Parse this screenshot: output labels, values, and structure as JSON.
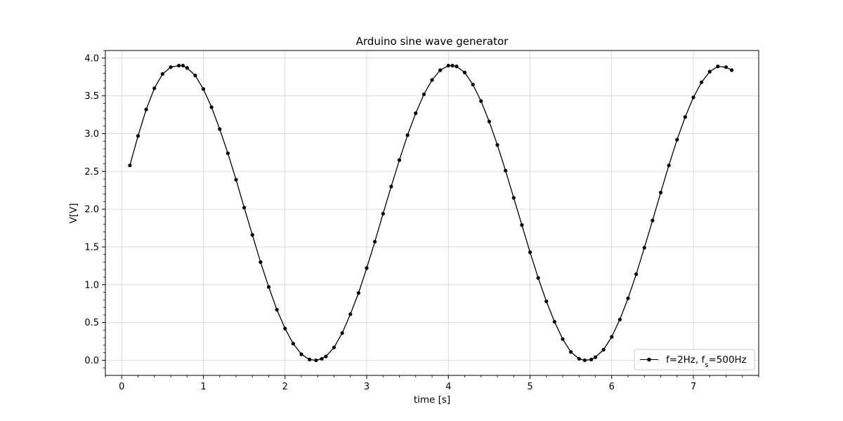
{
  "chart_data": {
    "type": "line",
    "title": "Arduino sine wave generator",
    "xlabel": "time [s]",
    "ylabel": "V[V]",
    "xlim": [
      -0.2,
      7.8
    ],
    "ylim": [
      -0.2,
      4.1
    ],
    "xticks": [
      0,
      1,
      2,
      3,
      4,
      5,
      6,
      7
    ],
    "xtick_labels": [
      "0",
      "1",
      "2",
      "3",
      "4",
      "5",
      "6",
      "7"
    ],
    "yticks": [
      0.0,
      0.5,
      1.0,
      1.5,
      2.0,
      2.5,
      3.0,
      3.5,
      4.0
    ],
    "ytick_labels": [
      "0.0",
      "0.5",
      "1.0",
      "1.5",
      "2.0",
      "2.5",
      "3.0",
      "3.5",
      "4.0"
    ],
    "grid": true,
    "minor_ticks": true,
    "legend_position": "lower-right",
    "series": [
      {
        "name": "f=2Hz, f_s=500Hz",
        "legend_label": {
          "prefix": "f=2Hz, f",
          "subscript": "s",
          "suffix": "=500Hz"
        },
        "color": "#000000",
        "marker": "circle",
        "linestyle": "solid",
        "x": [
          0.1,
          0.2,
          0.3,
          0.4,
          0.5,
          0.6,
          0.7,
          0.75,
          0.8,
          0.9,
          1.0,
          1.1,
          1.2,
          1.3,
          1.4,
          1.5,
          1.6,
          1.7,
          1.8,
          1.9,
          2.0,
          2.1,
          2.2,
          2.3,
          2.38,
          2.45,
          2.5,
          2.6,
          2.7,
          2.8,
          2.9,
          3.0,
          3.1,
          3.2,
          3.3,
          3.4,
          3.5,
          3.6,
          3.7,
          3.8,
          3.9,
          4.0,
          4.05,
          4.1,
          4.2,
          4.3,
          4.4,
          4.5,
          4.6,
          4.7,
          4.8,
          4.9,
          5.0,
          5.1,
          5.2,
          5.3,
          5.4,
          5.5,
          5.6,
          5.67,
          5.75,
          5.8,
          5.9,
          6.0,
          6.1,
          6.2,
          6.3,
          6.4,
          6.5,
          6.6,
          6.7,
          6.8,
          6.9,
          7.0,
          7.1,
          7.2,
          7.3,
          7.4,
          7.47
        ],
        "y": [
          2.58,
          2.97,
          3.32,
          3.6,
          3.79,
          3.88,
          3.9,
          3.9,
          3.87,
          3.77,
          3.59,
          3.35,
          3.06,
          2.74,
          2.39,
          2.02,
          1.66,
          1.3,
          0.97,
          0.67,
          0.42,
          0.22,
          0.08,
          0.01,
          0.0,
          0.02,
          0.05,
          0.17,
          0.36,
          0.61,
          0.89,
          1.22,
          1.57,
          1.94,
          2.3,
          2.65,
          2.98,
          3.27,
          3.52,
          3.71,
          3.84,
          3.9,
          3.9,
          3.89,
          3.81,
          3.65,
          3.43,
          3.16,
          2.85,
          2.51,
          2.15,
          1.79,
          1.43,
          1.09,
          0.78,
          0.51,
          0.28,
          0.11,
          0.02,
          0.0,
          0.01,
          0.04,
          0.14,
          0.31,
          0.54,
          0.82,
          1.14,
          1.49,
          1.85,
          2.22,
          2.58,
          2.92,
          3.22,
          3.48,
          3.68,
          3.82,
          3.89,
          3.88,
          3.84
        ]
      }
    ]
  }
}
